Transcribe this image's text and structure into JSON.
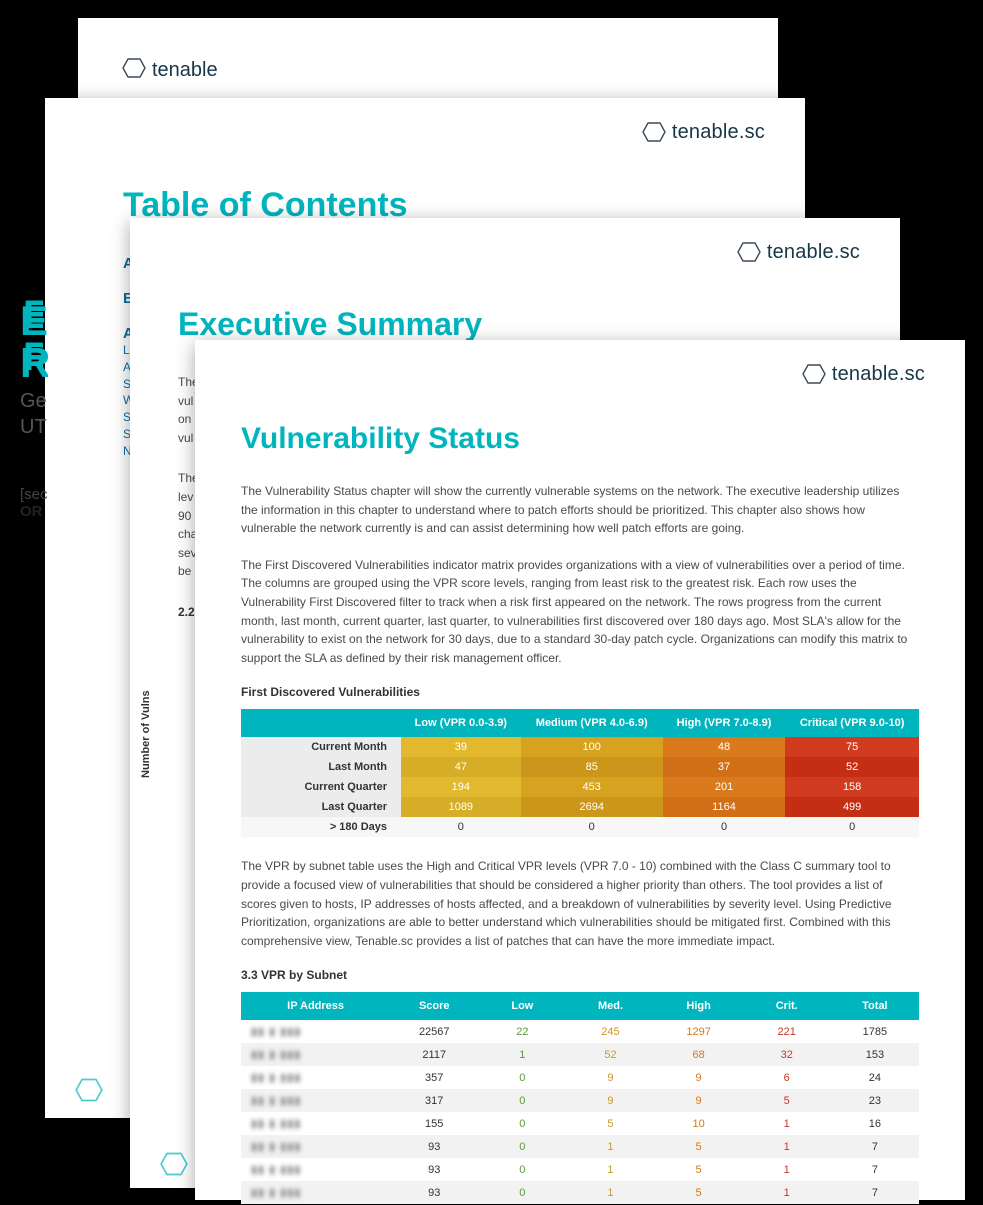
{
  "brand": {
    "name": "tenable",
    "suffix": ".sc",
    "hex_stroke": "#3a4a59",
    "text_color": "#173647"
  },
  "colors": {
    "teal": "#00b5be",
    "blue_link": "#0072ab",
    "low": "#e2b92e",
    "low_alt": "#d6ad27",
    "med": "#d6a21f",
    "med_alt": "#cb961a",
    "high": "#d97a1c",
    "high_alt": "#d06f16",
    "crit": "#d13b1f",
    "crit_alt": "#c42f14",
    "row_gray": "#ececec",
    "row_light": "#f7f7f7",
    "zebra": "#f2f2f2",
    "body": "#4a4a4a",
    "val_low_txt": "#5a9b3a",
    "val_med_txt": "#c99a1e",
    "val_high_txt": "#d6791c",
    "val_crit_txt": "#c0392b"
  },
  "page1": {
    "title_prefix": "E",
    "subtitle_prefix": "R",
    "meta1": "Ge",
    "meta2": "UT",
    "bracket": "[sec",
    "or": "OR"
  },
  "page2": {
    "title": "Table of Contents",
    "items": [
      "Ab",
      "Ex"
    ],
    "sub_heading": "Au",
    "sub_links": [
      "Loca",
      "Authe",
      "Summ",
      "Wind",
      "SMB",
      "SSH",
      "Ness"
    ]
  },
  "page3": {
    "title": "Executive Summary",
    "para1": "The",
    "para1b": "vul",
    "para1c": "on",
    "para1d": "vul",
    "para2a": "The",
    "para2b": "lev",
    "para2c": "90",
    "para2d": "cha",
    "para2e": "sev",
    "para2f": "be",
    "sec": "2.2",
    "ylabel": "Number of Vulns"
  },
  "page4": {
    "title": "Vulnerability Status",
    "para1": "The Vulnerability Status chapter will show the currently vulnerable systems on the network. The executive leadership utilizes the information in this chapter to understand where to patch efforts should be prioritized. This chapter also shows how vulnerable the network currently is and can assist determining how well patch efforts are going.",
    "para2": "The First Discovered Vulnerabilities indicator matrix provides organizations with a view of vulnerabilities over a period of time. The columns are grouped using the VPR score levels, ranging from least risk to the greatest risk. Each row uses the Vulnerability First Discovered filter to track when a risk first appeared on the network. The rows progress from the current month, last month, current quarter, last quarter, to vulnerabilities first discovered over 180 days ago. Most SLA's allow for the vulnerability to exist on the network for 30 days, due to a standard 30-day patch cycle. Organizations can modify this matrix to support the SLA as defined by their risk management officer.",
    "fd_label": "First Discovered Vulnerabilities",
    "fd_table": {
      "columns": [
        "",
        "Low (VPR 0.0-3.9)",
        "Medium (VPR 4.0-6.9)",
        "High (VPR 7.0-8.9)",
        "Critical (VPR 9.0-10)"
      ],
      "rows": [
        {
          "label": "Current Month",
          "vals": [
            "39",
            "100",
            "48",
            "75"
          ]
        },
        {
          "label": "Last Month",
          "vals": [
            "47",
            "85",
            "37",
            "52"
          ]
        },
        {
          "label": "Current Quarter",
          "vals": [
            "194",
            "453",
            "201",
            "158"
          ]
        },
        {
          "label": "Last Quarter",
          "vals": [
            "1089",
            "2694",
            "1164",
            "499"
          ]
        },
        {
          "label": "> 180 Days",
          "vals": [
            "0",
            "0",
            "0",
            "0"
          ]
        }
      ],
      "col_colors": [
        "#e2b92e",
        "#d6a21f",
        "#d97a1c",
        "#d13b1f"
      ],
      "col_colors_alt": [
        "#d6ad27",
        "#cb961a",
        "#d06f16",
        "#c42f14"
      ]
    },
    "para3": "The VPR by subnet table uses the High and Critical VPR levels (VPR 7.0 - 10) combined with the Class C summary tool to provide a focused view of vulnerabilities that should be considered a higher priority than others. The tool provides a list of scores given to hosts, IP addresses of hosts affected, and a breakdown of vulnerabilities by severity level. Using Predictive Prioritization, organizations are able to better understand which vulnerabilities should be mitigated first. Combined with this comprehensive view, Tenable.sc provides a list of patches that can have the more immediate impact.",
    "vpr_label": "3.3 VPR by Subnet",
    "vpr_table": {
      "columns": [
        "IP Address",
        "Score",
        "Low",
        "Med.",
        "High",
        "Crit.",
        "Total"
      ],
      "col_widths": [
        "22%",
        "13%",
        "13%",
        "13%",
        "13%",
        "13%",
        "13%"
      ],
      "rows": [
        {
          "ip": "▮▮ ▮ ▮▮▮",
          "score": "22567",
          "low": "22",
          "med": "245",
          "high": "1297",
          "crit": "221",
          "total": "1785"
        },
        {
          "ip": "▮▮ ▮ ▮▮▮",
          "score": "2117",
          "low": "1",
          "med": "52",
          "high": "68",
          "crit": "32",
          "total": "153"
        },
        {
          "ip": "▮▮ ▮ ▮▮▮",
          "score": "357",
          "low": "0",
          "med": "9",
          "high": "9",
          "crit": "6",
          "total": "24"
        },
        {
          "ip": "▮▮ ▮ ▮▮▮",
          "score": "317",
          "low": "0",
          "med": "9",
          "high": "9",
          "crit": "5",
          "total": "23"
        },
        {
          "ip": "▮▮ ▮ ▮▮▮",
          "score": "155",
          "low": "0",
          "med": "5",
          "high": "10",
          "crit": "1",
          "total": "16"
        },
        {
          "ip": "▮▮ ▮ ▮▮▮",
          "score": "93",
          "low": "0",
          "med": "1",
          "high": "5",
          "crit": "1",
          "total": "7"
        },
        {
          "ip": "▮▮ ▮ ▮▮▮",
          "score": "93",
          "low": "0",
          "med": "1",
          "high": "5",
          "crit": "1",
          "total": "7"
        },
        {
          "ip": "▮▮ ▮ ▮▮▮",
          "score": "93",
          "low": "0",
          "med": "1",
          "high": "5",
          "crit": "1",
          "total": "7"
        }
      ]
    }
  }
}
